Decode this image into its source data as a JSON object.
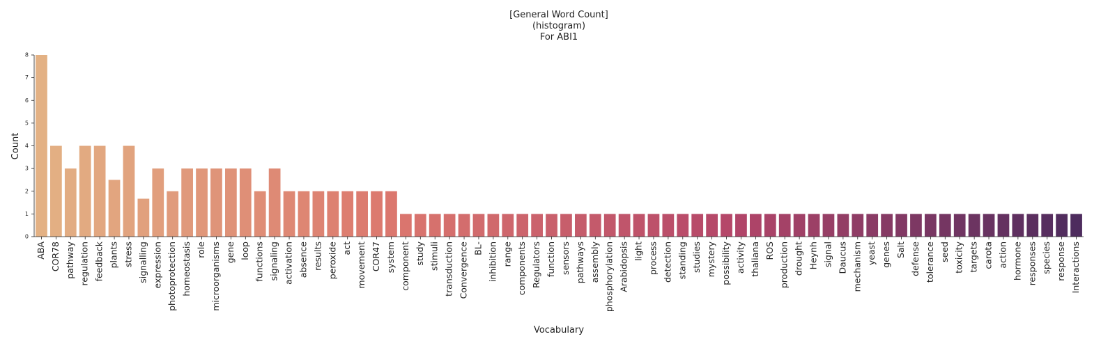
{
  "chart_data": {
    "type": "bar",
    "title_lines": [
      "[General Word Count]",
      "(histogram)",
      "For ABI1"
    ],
    "xlabel": "Vocabulary",
    "ylabel": "Count",
    "ylim": [
      0,
      8
    ],
    "yticks": [
      "0",
      "1",
      "2",
      "3",
      "4",
      "5",
      "6",
      "7",
      "8"
    ],
    "grid": false,
    "legend": "none",
    "palette": "flare",
    "color_start": "#e3b184",
    "color_end": "#4e2c5e",
    "categories": [
      "ABA",
      "COR78",
      "pathway",
      "regulation",
      "feedback",
      "plants",
      "stress",
      "signalling",
      "expression",
      "photoprotection",
      "homeostasis",
      "role",
      "microorganisms",
      "gene",
      "loop",
      "functions",
      "signaling",
      "activation",
      "absence",
      "results",
      "peroxide",
      "act",
      "movement",
      "COR47",
      "system",
      "component",
      "study",
      "stimuli",
      "transduction",
      "Convergence",
      "BL-",
      "inhibition",
      "range",
      "components",
      "Regulators",
      "function",
      "sensors",
      "pathways",
      "assembly",
      "phosphorylation",
      "Arabidopsis",
      "light",
      "process",
      "detection",
      "standing",
      "studies",
      "mystery",
      "possibility",
      "activity",
      "thaliana",
      "ROS",
      "production",
      "drought",
      "Heynh",
      "signal",
      "Daucus",
      "mechanism",
      "yeast",
      "genes",
      "Salt",
      "defense",
      "tolerance",
      "seed",
      "toxicity",
      "targets",
      "carota",
      "action",
      "hormone",
      "responses",
      "species",
      "response",
      "Interactions"
    ],
    "values": [
      8,
      4,
      3,
      4,
      4,
      2.5,
      4,
      1.67,
      3,
      2,
      3,
      3,
      3,
      3,
      3,
      2,
      3,
      2,
      2,
      2,
      2,
      2,
      2,
      2,
      2,
      1,
      1,
      1,
      1,
      1,
      1,
      1,
      1,
      1,
      1,
      1,
      1,
      1,
      1,
      1,
      1,
      1,
      1,
      1,
      1,
      1,
      1,
      1,
      1,
      1,
      1,
      1,
      1,
      1,
      1,
      1,
      1,
      1,
      1,
      1,
      1,
      1,
      1,
      1,
      1,
      1,
      1,
      1,
      1,
      1,
      1,
      1
    ]
  }
}
